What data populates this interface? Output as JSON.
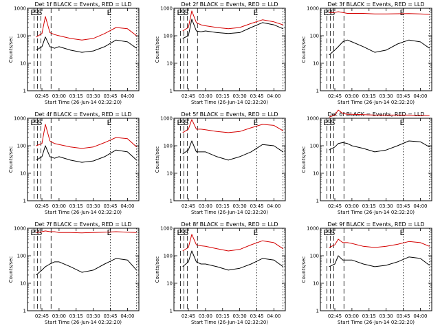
{
  "figure": {
    "background": "#ffffff",
    "series_colors": {
      "events": "#000000",
      "lld": "#d40000"
    }
  },
  "chart_data": [
    {
      "type": "line",
      "title": "Det 1f BLACK = Events, RED = LLD",
      "xlabel": "Start Time (26-Jun-14 02:32:20)",
      "ylabel": "Counts/sec",
      "xlim": [
        "02:32:20",
        "04:10:00"
      ],
      "ylim": [
        1,
        1000
      ],
      "yscale": "log",
      "x_ticks": [
        "02:45",
        "03:00",
        "03:15",
        "03:30",
        "03:45",
        "04:00"
      ],
      "y_ticks": [
        "1",
        "10",
        "100",
        "1000"
      ],
      "x": [
        "02:40",
        "02:45",
        "02:48",
        "02:52",
        "02:56",
        "03:00",
        "03:10",
        "03:20",
        "03:30",
        "03:40",
        "03:50",
        "04:00",
        "04:08"
      ],
      "series": [
        {
          "values": [
            30,
            40,
            90,
            40,
            35,
            40,
            30,
            25,
            28,
            40,
            70,
            60,
            35
          ]
        },
        {
          "values": [
            90,
            120,
            500,
            130,
            110,
            100,
            80,
            70,
            80,
            120,
            200,
            180,
            100
          ]
        }
      ],
      "markers": [
        {
          "time": "02:38",
          "label": "E",
          "style": "dashed"
        },
        {
          "time": "02:41",
          "label": "S",
          "style": "dashed"
        },
        {
          "time": "02:44",
          "label": "S",
          "style": "dashed"
        },
        {
          "time": "02:53",
          "label": "",
          "style": "dashed"
        },
        {
          "time": "03:45",
          "label": "E",
          "style": "dotted"
        },
        {
          "time": "04:08",
          "label": "",
          "style": "dotted"
        }
      ]
    },
    {
      "type": "line",
      "title": "Det 2f BLACK = Events, RED = LLD",
      "xlabel": "Start Time (26-Jun-14 02:32:20)",
      "ylabel": "Counts/sec",
      "xlim": [
        "02:32:20",
        "04:10:00"
      ],
      "ylim": [
        1,
        1000
      ],
      "yscale": "log",
      "x_ticks": [
        "02:45",
        "03:00",
        "03:15",
        "03:30",
        "03:45",
        "04:00"
      ],
      "y_ticks": [
        "1",
        "10",
        "100",
        "1000"
      ],
      "x": [
        "02:40",
        "02:45",
        "02:48",
        "02:52",
        "02:56",
        "03:00",
        "03:10",
        "03:20",
        "03:30",
        "03:40",
        "03:50",
        "04:00",
        "04:08"
      ],
      "series": [
        {
          "values": [
            80,
            100,
            400,
            150,
            140,
            150,
            130,
            120,
            130,
            200,
            300,
            250,
            180
          ]
        },
        {
          "values": [
            150,
            200,
            800,
            300,
            250,
            230,
            200,
            180,
            200,
            280,
            380,
            320,
            250
          ]
        }
      ],
      "markers": [
        {
          "time": "02:38",
          "label": "E",
          "style": "dashed"
        },
        {
          "time": "02:41",
          "label": "S",
          "style": "dashed"
        },
        {
          "time": "02:44",
          "label": "S",
          "style": "dashed"
        },
        {
          "time": "02:53",
          "label": "",
          "style": "dashed"
        },
        {
          "time": "03:45",
          "label": "E",
          "style": "dotted"
        },
        {
          "time": "04:08",
          "label": "",
          "style": "dotted"
        }
      ]
    },
    {
      "type": "line",
      "title": "Det 3f BLACK = Events, RED = LLD",
      "xlabel": "Start Time (26-Jun-14 02:32:20)",
      "ylabel": "Counts/sec",
      "xlim": [
        "02:32:20",
        "04:10:00"
      ],
      "ylim": [
        1,
        1000
      ],
      "yscale": "log",
      "x_ticks": [
        "02:45",
        "03:00",
        "03:15",
        "03:30",
        "03:45",
        "04:00"
      ],
      "y_ticks": [
        "1",
        "10",
        "100",
        "1000"
      ],
      "x": [
        "02:40",
        "02:45",
        "02:48",
        "02:52",
        "02:56",
        "03:00",
        "03:10",
        "03:20",
        "03:30",
        "03:40",
        "03:50",
        "04:00",
        "04:08"
      ],
      "series": [
        {
          "values": [
            20,
            30,
            40,
            60,
            70,
            60,
            40,
            25,
            30,
            50,
            70,
            60,
            35
          ]
        },
        {
          "values": [
            700,
            700,
            750,
            700,
            650,
            650,
            650,
            620,
            620,
            630,
            640,
            620,
            600
          ]
        }
      ],
      "markers": [
        {
          "time": "02:38",
          "label": "E",
          "style": "dashed"
        },
        {
          "time": "02:41",
          "label": "S",
          "style": "dashed"
        },
        {
          "time": "02:44",
          "label": "S",
          "style": "dashed"
        },
        {
          "time": "02:53",
          "label": "",
          "style": "dashed"
        },
        {
          "time": "03:45",
          "label": "E",
          "style": "dotted"
        },
        {
          "time": "04:08",
          "label": "",
          "style": "dotted"
        }
      ]
    },
    {
      "type": "line",
      "title": "Det 4f BLACK = Events, RED = LLD",
      "xlabel": "Start Time (26-Jun-14 02:32:20)",
      "ylabel": "Counts/sec",
      "xlim": [
        "02:32:20",
        "04:10:00"
      ],
      "ylim": [
        1,
        1000
      ],
      "yscale": "log",
      "x_ticks": [
        "02:45",
        "03:00",
        "03:15",
        "03:30",
        "03:45",
        "04:00"
      ],
      "y_ticks": [
        "1",
        "10",
        "100",
        "1000"
      ],
      "x": [
        "02:40",
        "02:45",
        "02:48",
        "02:52",
        "02:56",
        "03:00",
        "03:10",
        "03:20",
        "03:30",
        "03:40",
        "03:50",
        "04:00",
        "04:08"
      ],
      "series": [
        {
          "values": [
            30,
            40,
            100,
            40,
            35,
            40,
            30,
            25,
            28,
            40,
            70,
            60,
            30
          ]
        },
        {
          "values": [
            100,
            120,
            600,
            150,
            120,
            110,
            90,
            80,
            90,
            130,
            200,
            180,
            90
          ]
        }
      ],
      "markers": [
        {
          "time": "02:38",
          "label": "E",
          "style": "dashed"
        },
        {
          "time": "02:41",
          "label": "S",
          "style": "dashed"
        },
        {
          "time": "02:44",
          "label": "S",
          "style": "dashed"
        },
        {
          "time": "02:53",
          "label": "",
          "style": "dashed"
        },
        {
          "time": "03:45",
          "label": "E",
          "style": "dotted"
        },
        {
          "time": "04:08",
          "label": "",
          "style": "dotted"
        }
      ]
    },
    {
      "type": "line",
      "title": "Det 5f BLACK = Events, RED = LLD",
      "xlabel": "Start Time (26-Jun-14 02:32:20)",
      "ylabel": "Counts/sec",
      "xlim": [
        "02:32:20",
        "04:10:00"
      ],
      "ylim": [
        1,
        1000
      ],
      "yscale": "log",
      "x_ticks": [
        "02:45",
        "03:00",
        "03:15",
        "03:30",
        "03:45",
        "04:00"
      ],
      "y_ticks": [
        "1",
        "10",
        "100",
        "1000"
      ],
      "x": [
        "02:40",
        "02:45",
        "02:48",
        "02:52",
        "02:56",
        "03:00",
        "03:10",
        "03:20",
        "03:30",
        "03:40",
        "03:50",
        "04:00",
        "04:08"
      ],
      "series": [
        {
          "values": [
            50,
            70,
            150,
            60,
            60,
            60,
            40,
            30,
            40,
            60,
            110,
            100,
            60
          ]
        },
        {
          "values": [
            300,
            400,
            900,
            400,
            400,
            380,
            330,
            300,
            330,
            450,
            600,
            550,
            350
          ]
        }
      ],
      "markers": [
        {
          "time": "02:38",
          "label": "E",
          "style": "dashed"
        },
        {
          "time": "02:41",
          "label": "S",
          "style": "dashed"
        },
        {
          "time": "02:44",
          "label": "S",
          "style": "dashed"
        },
        {
          "time": "02:53",
          "label": "",
          "style": "dashed"
        },
        {
          "time": "03:45",
          "label": "E",
          "style": "dotted"
        },
        {
          "time": "04:08",
          "label": "",
          "style": "dotted"
        }
      ]
    },
    {
      "type": "line",
      "title": "Det 6f BLACK = Events, RED = LLD",
      "xlabel": "Start Time (26-Jun-14 02:32:20)",
      "ylabel": "Counts/sec",
      "xlim": [
        "02:32:20",
        "04:10:00"
      ],
      "ylim": [
        1,
        1000
      ],
      "yscale": "log",
      "x_ticks": [
        "02:45",
        "03:00",
        "03:15",
        "03:30",
        "03:45",
        "04:00"
      ],
      "y_ticks": [
        "1",
        "10",
        "100",
        "1000"
      ],
      "x": [
        "02:40",
        "02:45",
        "02:48",
        "02:52",
        "02:56",
        "03:00",
        "03:10",
        "03:20",
        "03:30",
        "03:40",
        "03:50",
        "04:00",
        "04:08"
      ],
      "series": [
        {
          "values": [
            70,
            90,
            120,
            130,
            120,
            100,
            80,
            60,
            70,
            100,
            150,
            140,
            90
          ]
        },
        {
          "values": [
            1100,
            1300,
            2000,
            1500,
            1400,
            1400,
            1350,
            1300,
            1300,
            1300,
            1300,
            1280,
            1250
          ]
        }
      ],
      "markers": [
        {
          "time": "02:38",
          "label": "E",
          "style": "dashed"
        },
        {
          "time": "02:41",
          "label": "S",
          "style": "dashed"
        },
        {
          "time": "02:44",
          "label": "S",
          "style": "dashed"
        },
        {
          "time": "02:53",
          "label": "",
          "style": "dashed"
        },
        {
          "time": "03:45",
          "label": "E",
          "style": "dotted"
        },
        {
          "time": "04:08",
          "label": "",
          "style": "dotted"
        }
      ]
    },
    {
      "type": "line",
      "title": "Det 7f BLACK = Events, RED = LLD",
      "xlabel": "Start Time (26-Jun-14 02:32:20)",
      "ylabel": "Counts/sec",
      "xlim": [
        "02:32:20",
        "04:10:00"
      ],
      "ylim": [
        1,
        1000
      ],
      "yscale": "log",
      "x_ticks": [
        "02:45",
        "03:00",
        "03:15",
        "03:30",
        "03:45",
        "04:00"
      ],
      "y_ticks": [
        "1",
        "10",
        "100",
        "1000"
      ],
      "x": [
        "02:40",
        "02:45",
        "02:48",
        "02:52",
        "02:56",
        "03:00",
        "03:10",
        "03:20",
        "03:30",
        "03:40",
        "03:50",
        "04:00",
        "04:08"
      ],
      "series": [
        {
          "values": [
            20,
            30,
            40,
            50,
            60,
            60,
            40,
            25,
            30,
            50,
            80,
            70,
            30
          ]
        },
        {
          "values": [
            700,
            750,
            800,
            750,
            750,
            700,
            700,
            680,
            700,
            720,
            750,
            720,
            700
          ]
        }
      ],
      "markers": [
        {
          "time": "02:38",
          "label": "E",
          "style": "dashed"
        },
        {
          "time": "02:41",
          "label": "S",
          "style": "dashed"
        },
        {
          "time": "02:44",
          "label": "S",
          "style": "dashed"
        },
        {
          "time": "02:53",
          "label": "",
          "style": "dashed"
        },
        {
          "time": "03:45",
          "label": "E",
          "style": "dotted"
        },
        {
          "time": "04:08",
          "label": "",
          "style": "dotted"
        }
      ]
    },
    {
      "type": "line",
      "title": "Det 8f BLACK = Events, RED = LLD",
      "xlabel": "Start Time (26-Jun-14 02:32:20)",
      "ylabel": "Counts/sec",
      "xlim": [
        "02:32:20",
        "04:10:00"
      ],
      "ylim": [
        1,
        1000
      ],
      "yscale": "log",
      "x_ticks": [
        "02:45",
        "03:00",
        "03:15",
        "03:30",
        "03:45",
        "04:00"
      ],
      "y_ticks": [
        "1",
        "10",
        "100",
        "1000"
      ],
      "x": [
        "02:40",
        "02:45",
        "02:48",
        "02:52",
        "02:56",
        "03:00",
        "03:10",
        "03:20",
        "03:30",
        "03:40",
        "03:50",
        "04:00",
        "04:08"
      ],
      "series": [
        {
          "values": [
            40,
            60,
            150,
            60,
            50,
            50,
            40,
            30,
            35,
            50,
            80,
            70,
            40
          ]
        },
        {
          "values": [
            150,
            200,
            600,
            250,
            230,
            220,
            180,
            150,
            170,
            250,
            350,
            300,
            180
          ]
        }
      ],
      "markers": [
        {
          "time": "02:38",
          "label": "E",
          "style": "dashed"
        },
        {
          "time": "02:41",
          "label": "S",
          "style": "dashed"
        },
        {
          "time": "02:44",
          "label": "S",
          "style": "dashed"
        },
        {
          "time": "02:53",
          "label": "",
          "style": "dashed"
        },
        {
          "time": "03:45",
          "label": "E",
          "style": "dotted"
        },
        {
          "time": "04:08",
          "label": "",
          "style": "dotted"
        }
      ]
    },
    {
      "type": "line",
      "title": "Det 9f BLACK = Events, RED = LLD",
      "xlabel": "Start Time (26-Jun-14 02:32:20)",
      "ylabel": "Counts/sec",
      "xlim": [
        "02:32:20",
        "04:10:00"
      ],
      "ylim": [
        1,
        1000
      ],
      "yscale": "log",
      "x_ticks": [
        "02:45",
        "03:00",
        "03:15",
        "03:30",
        "03:45",
        "04:00"
      ],
      "y_ticks": [
        "1",
        "10",
        "100",
        "1000"
      ],
      "x": [
        "02:40",
        "02:45",
        "02:48",
        "02:52",
        "02:56",
        "03:00",
        "03:10",
        "03:20",
        "03:30",
        "03:40",
        "03:50",
        "04:00",
        "04:08"
      ],
      "series": [
        {
          "values": [
            40,
            50,
            100,
            70,
            70,
            70,
            50,
            40,
            45,
            60,
            90,
            80,
            45
          ]
        },
        {
          "values": [
            200,
            250,
            400,
            300,
            300,
            280,
            220,
            200,
            220,
            260,
            330,
            300,
            220
          ]
        }
      ],
      "markers": [
        {
          "time": "02:38",
          "label": "E",
          "style": "dashed"
        },
        {
          "time": "02:41",
          "label": "S",
          "style": "dashed"
        },
        {
          "time": "02:44",
          "label": "S",
          "style": "dashed"
        },
        {
          "time": "02:53",
          "label": "",
          "style": "dashed"
        },
        {
          "time": "03:45",
          "label": "E",
          "style": "dotted"
        },
        {
          "time": "04:08",
          "label": "",
          "style": "dotted"
        }
      ]
    }
  ]
}
